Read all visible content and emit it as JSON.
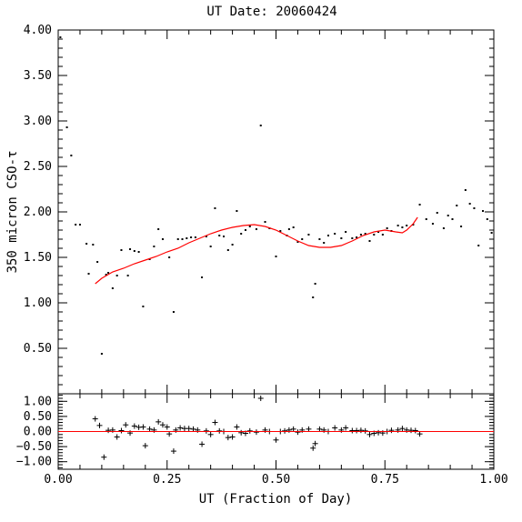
{
  "chart_data": [
    {
      "type": "scatter",
      "title": "UT Date: 20060424",
      "ylabel": "350 micron CSO-τ",
      "xlabel": "",
      "xlim": [
        0.0,
        1.0
      ],
      "ylim": [
        0.0,
        4.0
      ],
      "yticks": [
        "0.50",
        "1.00",
        "1.50",
        "2.00",
        "2.50",
        "3.00",
        "3.50",
        "4.00"
      ],
      "xticks_shown": false,
      "series": [
        {
          "values": [
            [
              0.005,
              3.92
            ],
            [
              0.02,
              2.93
            ],
            [
              0.03,
              2.62
            ],
            [
              0.04,
              1.86
            ],
            [
              0.05,
              1.86
            ],
            [
              0.065,
              1.65
            ],
            [
              0.07,
              1.32
            ],
            [
              0.08,
              1.64
            ],
            [
              0.09,
              1.45
            ],
            [
              0.1,
              0.44
            ],
            [
              0.11,
              1.31
            ],
            [
              0.115,
              1.33
            ],
            [
              0.125,
              1.16
            ],
            [
              0.135,
              1.3
            ],
            [
              0.145,
              1.58
            ],
            [
              0.16,
              1.3
            ],
            [
              0.165,
              1.59
            ],
            [
              0.175,
              1.57
            ],
            [
              0.185,
              1.56
            ],
            [
              0.195,
              0.96
            ],
            [
              0.21,
              1.48
            ],
            [
              0.22,
              1.62
            ],
            [
              0.23,
              1.81
            ],
            [
              0.24,
              1.7
            ],
            [
              0.255,
              1.5
            ],
            [
              0.265,
              0.9
            ],
            [
              0.275,
              1.7
            ],
            [
              0.285,
              1.7
            ],
            [
              0.295,
              1.71
            ],
            [
              0.305,
              1.72
            ],
            [
              0.315,
              1.72
            ],
            [
              0.33,
              1.28
            ],
            [
              0.34,
              1.73
            ],
            [
              0.35,
              1.62
            ],
            [
              0.36,
              2.04
            ],
            [
              0.37,
              1.74
            ],
            [
              0.38,
              1.73
            ],
            [
              0.39,
              1.58
            ],
            [
              0.4,
              1.64
            ],
            [
              0.41,
              2.01
            ],
            [
              0.42,
              1.76
            ],
            [
              0.43,
              1.8
            ],
            [
              0.44,
              1.84
            ],
            [
              0.455,
              1.81
            ],
            [
              0.465,
              2.95
            ],
            [
              0.475,
              1.89
            ],
            [
              0.485,
              1.82
            ],
            [
              0.5,
              1.51
            ],
            [
              0.51,
              1.79
            ],
            [
              0.525,
              1.74
            ],
            [
              0.53,
              1.81
            ],
            [
              0.54,
              1.83
            ],
            [
              0.55,
              1.67
            ],
            [
              0.56,
              1.7
            ],
            [
              0.575,
              1.75
            ],
            [
              0.585,
              1.06
            ],
            [
              0.59,
              1.21
            ],
            [
              0.6,
              1.7
            ],
            [
              0.61,
              1.66
            ],
            [
              0.62,
              1.74
            ],
            [
              0.635,
              1.76
            ],
            [
              0.65,
              1.71
            ],
            [
              0.66,
              1.78
            ],
            [
              0.675,
              1.71
            ],
            [
              0.685,
              1.72
            ],
            [
              0.695,
              1.75
            ],
            [
              0.705,
              1.76
            ],
            [
              0.715,
              1.68
            ],
            [
              0.725,
              1.75
            ],
            [
              0.735,
              1.78
            ],
            [
              0.745,
              1.75
            ],
            [
              0.755,
              1.82
            ],
            [
              0.765,
              1.79
            ],
            [
              0.78,
              1.85
            ],
            [
              0.79,
              1.83
            ],
            [
              0.8,
              1.85
            ],
            [
              0.815,
              1.86
            ],
            [
              0.83,
              2.08
            ],
            [
              0.845,
              1.92
            ],
            [
              0.86,
              1.87
            ],
            [
              0.87,
              1.99
            ],
            [
              0.885,
              1.82
            ],
            [
              0.895,
              1.96
            ],
            [
              0.905,
              1.92
            ],
            [
              0.915,
              2.07
            ],
            [
              0.925,
              1.84
            ],
            [
              0.935,
              2.24
            ],
            [
              0.945,
              2.09
            ],
            [
              0.955,
              2.04
            ],
            [
              0.965,
              1.63
            ],
            [
              0.975,
              2.01
            ],
            [
              0.985,
              1.92
            ],
            [
              0.995,
              1.77
            ]
          ]
        },
        {
          "values": [
            [
              0.085,
              1.21
            ],
            [
              0.1,
              1.27
            ],
            [
              0.125,
              1.34
            ],
            [
              0.15,
              1.38
            ],
            [
              0.175,
              1.43
            ],
            [
              0.2,
              1.47
            ],
            [
              0.225,
              1.51
            ],
            [
              0.25,
              1.56
            ],
            [
              0.275,
              1.6
            ],
            [
              0.3,
              1.66
            ],
            [
              0.325,
              1.71
            ],
            [
              0.35,
              1.76
            ],
            [
              0.375,
              1.8
            ],
            [
              0.4,
              1.83
            ],
            [
              0.425,
              1.85
            ],
            [
              0.45,
              1.86
            ],
            [
              0.475,
              1.84
            ],
            [
              0.5,
              1.8
            ],
            [
              0.525,
              1.74
            ],
            [
              0.55,
              1.68
            ],
            [
              0.575,
              1.63
            ],
            [
              0.6,
              1.61
            ],
            [
              0.625,
              1.61
            ],
            [
              0.65,
              1.63
            ],
            [
              0.675,
              1.68
            ],
            [
              0.7,
              1.74
            ],
            [
              0.725,
              1.78
            ],
            [
              0.75,
              1.8
            ],
            [
              0.775,
              1.78
            ],
            [
              0.79,
              1.77
            ],
            [
              0.8,
              1.8
            ],
            [
              0.815,
              1.87
            ],
            [
              0.825,
              1.94
            ]
          ],
          "color": "#ff0000",
          "style": "line"
        }
      ]
    },
    {
      "type": "scatter",
      "xlabel": "UT (Fraction of Day)",
      "ylabel": "",
      "xlim": [
        0.0,
        1.0
      ],
      "ylim": [
        -1.25,
        1.25
      ],
      "xticks": [
        "0.00",
        "0.25",
        "0.50",
        "0.75",
        "1.00"
      ],
      "yticks": [
        "−1.00",
        "−0.50",
        "0.00",
        "0.50",
        "1.00"
      ],
      "series": [
        {
          "values": [
            [
              0.085,
              0.42
            ],
            [
              0.095,
              0.2
            ],
            [
              0.105,
              -0.85
            ],
            [
              0.115,
              0.04
            ],
            [
              0.125,
              0.05
            ],
            [
              0.135,
              -0.18
            ],
            [
              0.145,
              0.03
            ],
            [
              0.155,
              0.22
            ],
            [
              0.165,
              -0.05
            ],
            [
              0.175,
              0.18
            ],
            [
              0.185,
              0.14
            ],
            [
              0.195,
              0.15
            ],
            [
              0.2,
              -0.47
            ],
            [
              0.21,
              0.08
            ],
            [
              0.22,
              0.05
            ],
            [
              0.23,
              0.32
            ],
            [
              0.24,
              0.22
            ],
            [
              0.25,
              0.15
            ],
            [
              0.255,
              -0.08
            ],
            [
              0.265,
              -0.65
            ],
            [
              0.27,
              0.05
            ],
            [
              0.28,
              0.12
            ],
            [
              0.29,
              0.1
            ],
            [
              0.3,
              0.1
            ],
            [
              0.31,
              0.08
            ],
            [
              0.32,
              0.05
            ],
            [
              0.33,
              -0.42
            ],
            [
              0.34,
              0.02
            ],
            [
              0.35,
              -0.1
            ],
            [
              0.36,
              0.3
            ],
            [
              0.37,
              0.02
            ],
            [
              0.38,
              0.0
            ],
            [
              0.39,
              -0.2
            ],
            [
              0.4,
              -0.18
            ],
            [
              0.41,
              0.15
            ],
            [
              0.42,
              -0.04
            ],
            [
              0.43,
              -0.06
            ],
            [
              0.44,
              0.02
            ],
            [
              0.455,
              -0.02
            ],
            [
              0.465,
              1.1
            ],
            [
              0.475,
              0.05
            ],
            [
              0.485,
              0.0
            ],
            [
              0.5,
              -0.28
            ],
            [
              0.51,
              0.0
            ],
            [
              0.52,
              0.02
            ],
            [
              0.53,
              0.05
            ],
            [
              0.54,
              0.08
            ],
            [
              0.55,
              -0.02
            ],
            [
              0.56,
              0.05
            ],
            [
              0.575,
              0.08
            ],
            [
              0.585,
              -0.55
            ],
            [
              0.59,
              -0.4
            ],
            [
              0.6,
              0.08
            ],
            [
              0.61,
              0.05
            ],
            [
              0.62,
              0.0
            ],
            [
              0.635,
              0.12
            ],
            [
              0.65,
              0.05
            ],
            [
              0.66,
              0.12
            ],
            [
              0.675,
              0.03
            ],
            [
              0.685,
              0.03
            ],
            [
              0.695,
              0.04
            ],
            [
              0.705,
              0.02
            ],
            [
              0.715,
              -0.1
            ],
            [
              0.725,
              -0.06
            ],
            [
              0.735,
              -0.04
            ],
            [
              0.745,
              -0.05
            ],
            [
              0.755,
              0.0
            ],
            [
              0.765,
              0.04
            ],
            [
              0.78,
              0.05
            ],
            [
              0.79,
              0.1
            ],
            [
              0.8,
              0.05
            ],
            [
              0.81,
              0.04
            ],
            [
              0.82,
              0.03
            ],
            [
              0.83,
              -0.08
            ]
          ]
        },
        {
          "values": [
            [
              0.0,
              0.0
            ],
            [
              1.0,
              0.0
            ]
          ],
          "color": "#ff0000",
          "style": "line"
        }
      ]
    }
  ]
}
